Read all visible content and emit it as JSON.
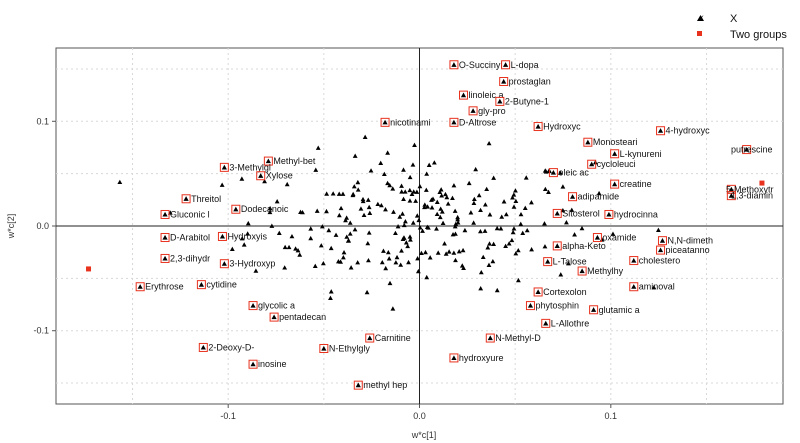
{
  "chart_data": {
    "type": "scatter",
    "title": "",
    "xlabel": "w*c[1]",
    "ylabel": "w*c[2]",
    "xlim": [
      -0.19,
      0.19
    ],
    "ylim": [
      -0.17,
      0.17
    ],
    "xticks": [
      "-0.1",
      "0.0",
      "0.1"
    ],
    "xtick_values": [
      -0.1,
      0.0,
      0.1
    ],
    "yticks": [
      "0.1",
      "0.0",
      "-0.1"
    ],
    "ytick_values": [
      0.1,
      0.0,
      -0.1
    ],
    "grid": true,
    "legend_position": "top-right",
    "series": [
      {
        "name": "X",
        "marker": "triangle",
        "color": "#000000",
        "labeled_points": [
          {
            "label": "O-Succinyl",
            "x": 0.018,
            "y": 0.154
          },
          {
            "label": "L-dopa",
            "x": 0.045,
            "y": 0.154
          },
          {
            "label": "prostaglan",
            "x": 0.044,
            "y": 0.138
          },
          {
            "label": "linoleic a",
            "x": 0.023,
            "y": 0.125
          },
          {
            "label": "2-Butyne-1",
            "x": 0.042,
            "y": 0.119
          },
          {
            "label": "gly-pro",
            "x": 0.028,
            "y": 0.11
          },
          {
            "label": "nicotinami",
            "x": -0.018,
            "y": 0.099
          },
          {
            "label": "D-Altrose",
            "x": 0.018,
            "y": 0.099
          },
          {
            "label": "Hydroxyc",
            "x": 0.062,
            "y": 0.095
          },
          {
            "label": "4-hydroxyc",
            "x": 0.126,
            "y": 0.091
          },
          {
            "label": "Monosteari",
            "x": 0.088,
            "y": 0.08
          },
          {
            "label": "L-kynureni",
            "x": 0.102,
            "y": 0.069
          },
          {
            "label": "Methyl-bet",
            "x": -0.079,
            "y": 0.062
          },
          {
            "label": "3-Methylgl",
            "x": -0.102,
            "y": 0.056
          },
          {
            "label": "putrescine",
            "x": 0.171,
            "y": 0.073
          },
          {
            "label": "Xylose",
            "x": -0.083,
            "y": 0.048
          },
          {
            "label": "cycloleuci",
            "x": 0.09,
            "y": 0.059
          },
          {
            "label": "oleic ac",
            "x": 0.07,
            "y": 0.051
          },
          {
            "label": "creatine",
            "x": 0.102,
            "y": 0.04
          },
          {
            "label": "5-Methoxytr",
            "x": 0.163,
            "y": 0.035
          },
          {
            "label": "1,3-diamin",
            "x": 0.163,
            "y": 0.029
          },
          {
            "label": "Threitol",
            "x": -0.122,
            "y": 0.026
          },
          {
            "label": "adipamide",
            "x": 0.08,
            "y": 0.028
          },
          {
            "label": "Gluconic l",
            "x": -0.133,
            "y": 0.011
          },
          {
            "label": "Dodecanoic",
            "x": -0.096,
            "y": 0.016
          },
          {
            "label": "hydrocinna",
            "x": 0.099,
            "y": 0.011
          },
          {
            "label": "Sitosterol",
            "x": 0.072,
            "y": 0.012
          },
          {
            "label": "D-Arabitol",
            "x": -0.133,
            "y": -0.011
          },
          {
            "label": "Hydroxyis",
            "x": -0.103,
            "y": -0.01
          },
          {
            "label": "oxamide",
            "x": 0.093,
            "y": -0.011
          },
          {
            "label": "N,N-dimeth",
            "x": 0.127,
            "y": -0.014
          },
          {
            "label": "alpha-Keto",
            "x": 0.072,
            "y": -0.019
          },
          {
            "label": "piceatanno",
            "x": 0.126,
            "y": -0.023
          },
          {
            "label": "2,3-dihydr",
            "x": -0.133,
            "y": -0.031
          },
          {
            "label": "3-Hydroxyp",
            "x": -0.102,
            "y": -0.036
          },
          {
            "label": "cholestero",
            "x": 0.112,
            "y": -0.033
          },
          {
            "label": "L-Talose",
            "x": 0.067,
            "y": -0.034
          },
          {
            "label": "Erythrose",
            "x": -0.146,
            "y": -0.058
          },
          {
            "label": "cytidine",
            "x": -0.114,
            "y": -0.056
          },
          {
            "label": "Methylhy",
            "x": 0.085,
            "y": -0.043
          },
          {
            "label": "aminoval",
            "x": 0.112,
            "y": -0.058
          },
          {
            "label": "Cortexolon",
            "x": 0.062,
            "y": -0.063
          },
          {
            "label": "glycolic a",
            "x": -0.087,
            "y": -0.076
          },
          {
            "label": "phytosphin",
            "x": 0.058,
            "y": -0.076
          },
          {
            "label": "glutamic a",
            "x": 0.091,
            "y": -0.08
          },
          {
            "label": "pentadecan",
            "x": -0.076,
            "y": -0.087
          },
          {
            "label": "L-Allothre",
            "x": 0.066,
            "y": -0.093
          },
          {
            "label": "N-Methyl-D",
            "x": 0.037,
            "y": -0.107
          },
          {
            "label": "2-Deoxy-D-",
            "x": -0.113,
            "y": -0.116
          },
          {
            "label": "Carnitine",
            "x": -0.026,
            "y": -0.107
          },
          {
            "label": "N-Ethylgly",
            "x": -0.05,
            "y": -0.117
          },
          {
            "label": "inosine",
            "x": -0.087,
            "y": -0.132
          },
          {
            "label": "hydroxyure",
            "x": 0.018,
            "y": -0.126
          },
          {
            "label": "methyl hep",
            "x": -0.032,
            "y": -0.152
          }
        ]
      },
      {
        "name": "Two groups",
        "marker": "square",
        "color": "#e8321e",
        "points": [
          [
            -0.173,
            -0.041
          ],
          [
            0.179,
            0.041
          ]
        ]
      }
    ],
    "background_cloud_note_count": 260
  },
  "legend": {
    "items": [
      {
        "label": "X",
        "symbol": "triangle-icon",
        "color": "#000000"
      },
      {
        "label": "Two groups",
        "symbol": "square-icon",
        "color": "#e8321e"
      }
    ]
  }
}
